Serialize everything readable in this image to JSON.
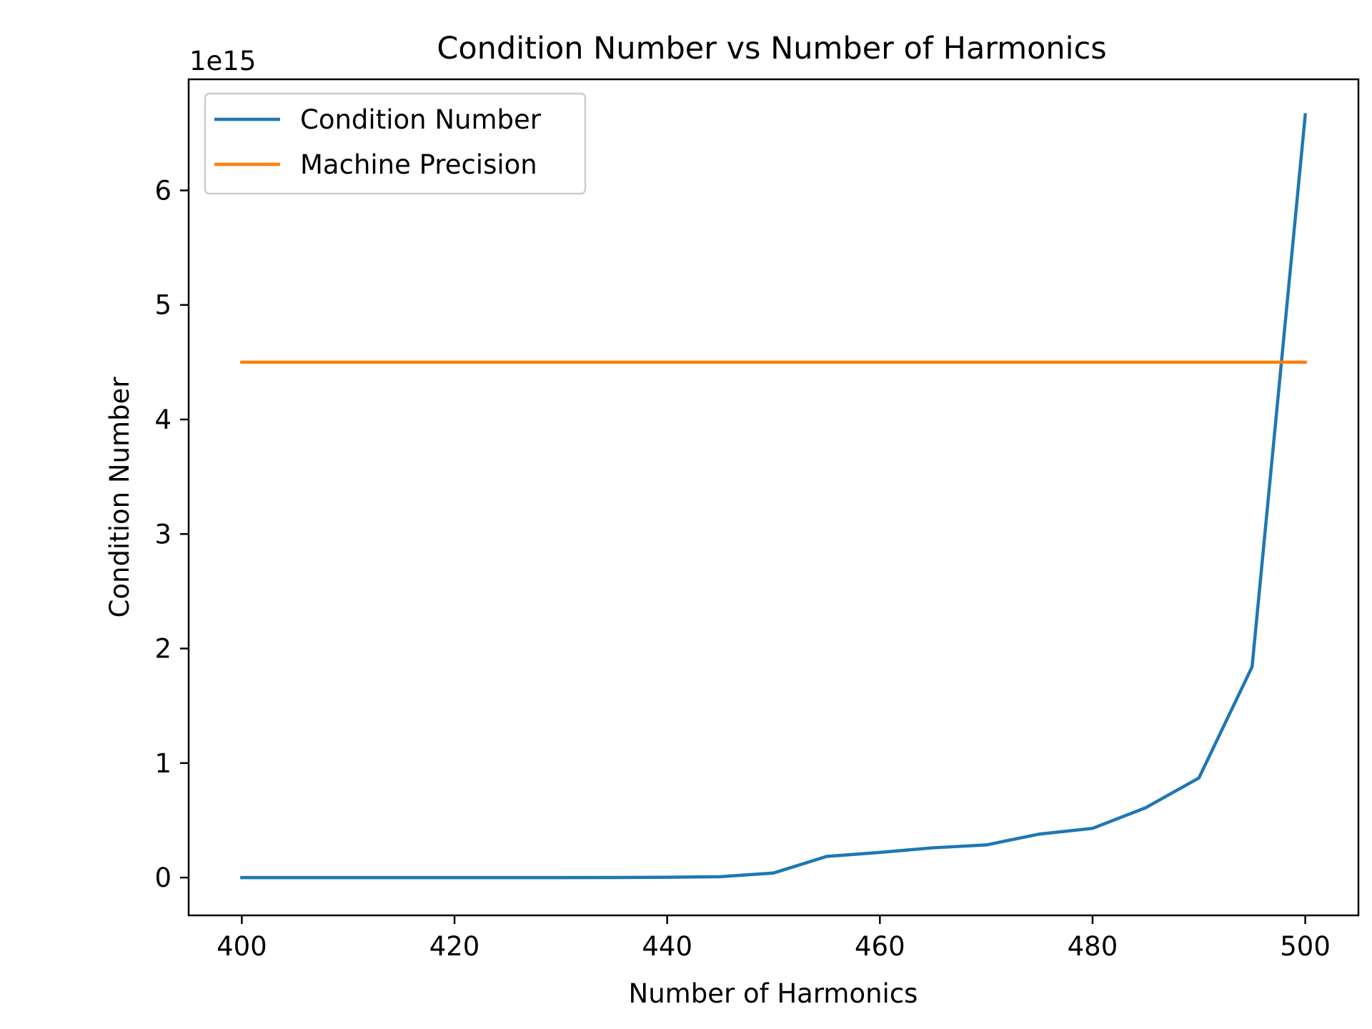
{
  "chart_data": {
    "type": "line",
    "title": "Condition Number vs Number of Harmonics",
    "xlabel": "Number of Harmonics",
    "ylabel": "Condition Number",
    "y_offset_label": "1e15",
    "xlim": [
      395,
      505
    ],
    "ylim": [
      -330000000000000.0,
      6970000000000000.0
    ],
    "x_ticks": [
      400,
      420,
      440,
      460,
      480,
      500
    ],
    "x_tick_labels": [
      "400",
      "420",
      "440",
      "460",
      "480",
      "500"
    ],
    "y_ticks": [
      0,
      1000000000000000.0,
      2000000000000000.0,
      3000000000000000.0,
      4000000000000000.0,
      5000000000000000.0,
      6000000000000000.0
    ],
    "y_tick_labels": [
      "0",
      "1",
      "2",
      "3",
      "4",
      "5",
      "6"
    ],
    "grid": false,
    "legend_position": "top-left",
    "series": [
      {
        "name": "Condition Number",
        "color": "#1f77b4",
        "x": [
          400,
          405,
          410,
          415,
          420,
          425,
          430,
          435,
          440,
          445,
          450,
          455,
          460,
          465,
          470,
          475,
          480,
          485,
          490,
          495,
          500
        ],
        "y": [
          0,
          0,
          0,
          0,
          0,
          0,
          0,
          1000000000000.0,
          3000000000000.0,
          8000000000000.0,
          40000000000000.0,
          185000000000000.0,
          220000000000000.0,
          260000000000000.0,
          285000000000000.0,
          380000000000000.0,
          430000000000000.0,
          610000000000000.0,
          870000000000000.0,
          1840000000000000.0,
          6660000000000000.0
        ]
      },
      {
        "name": "Machine Precision",
        "color": "#ff7f0e",
        "x": [
          400,
          500
        ],
        "y": [
          4500000000000000.0,
          4500000000000000.0
        ]
      }
    ]
  }
}
